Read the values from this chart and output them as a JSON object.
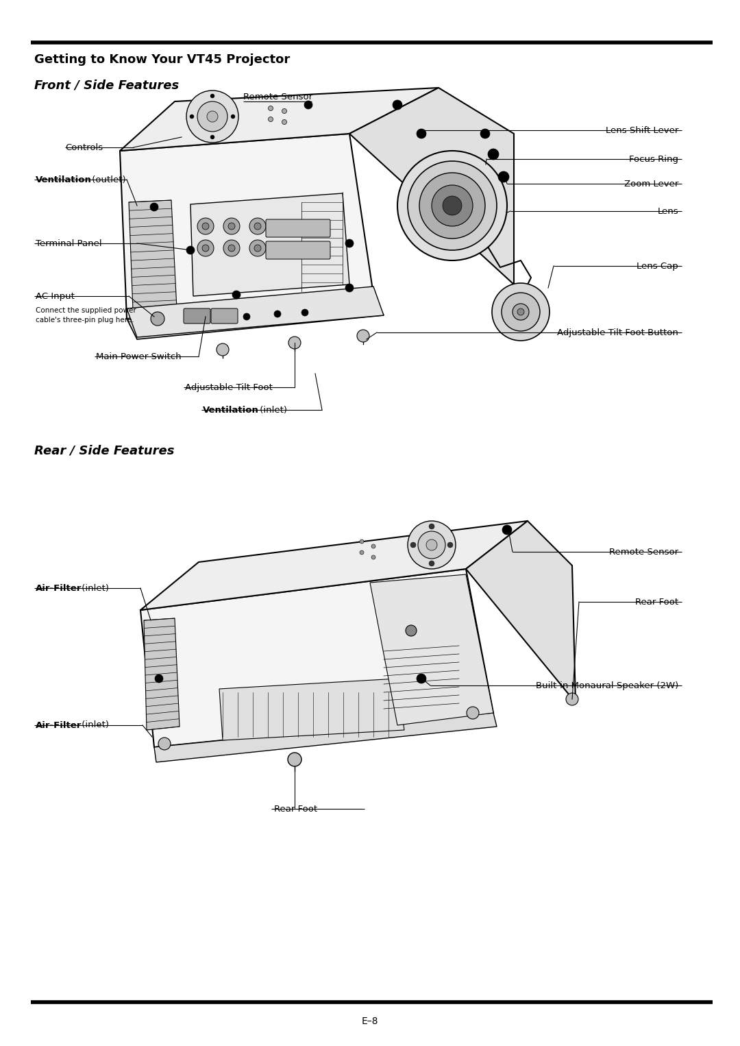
{
  "page_title": "Getting to Know Your VT45 Projector",
  "section1_title": "Front / Side Features",
  "section2_title": "Rear / Side Features",
  "page_number": "E–8",
  "bg_color": "#ffffff",
  "line_color": "#000000",
  "body_fill": "#f5f5f5",
  "top_fill": "#eeeeee",
  "side_fill": "#e0e0e0",
  "vent_fill": "#cccccc"
}
